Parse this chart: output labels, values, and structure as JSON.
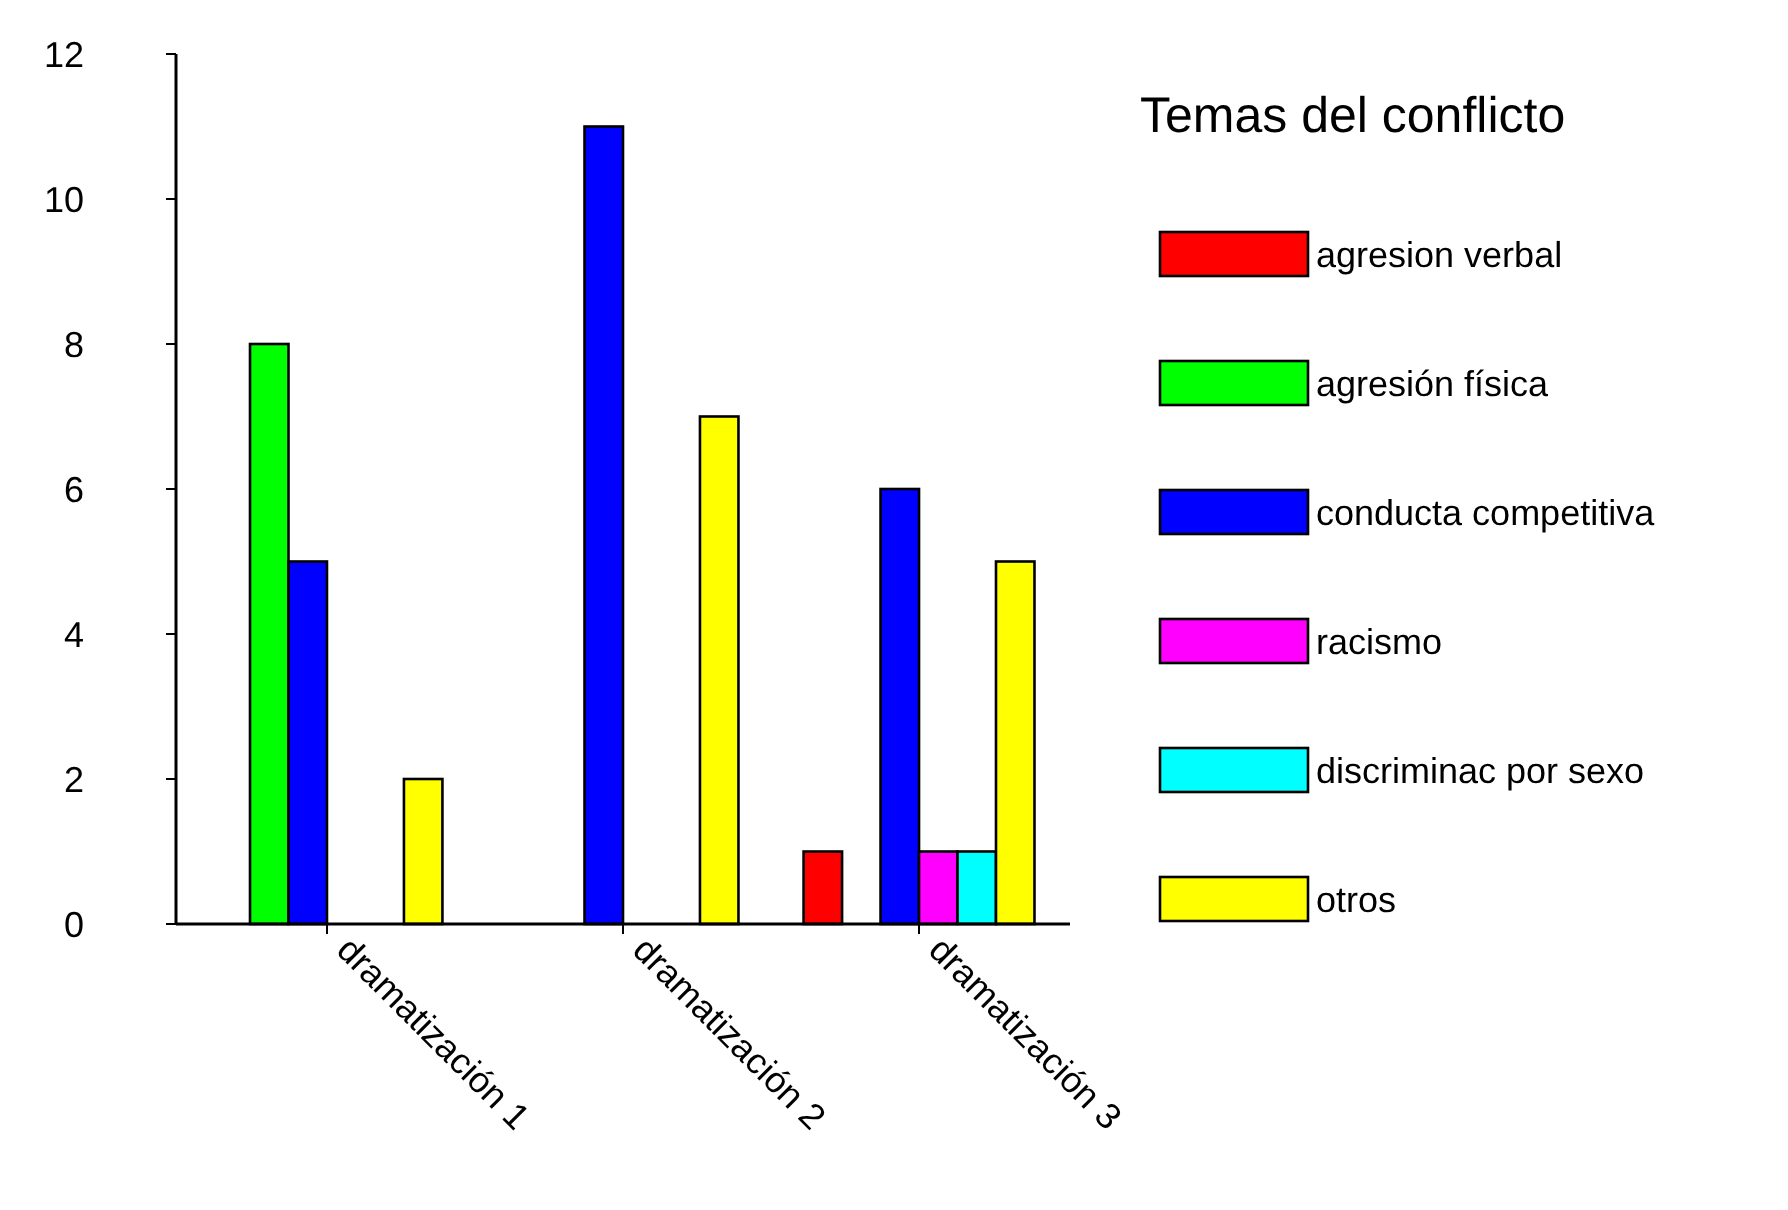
{
  "chart_data": {
    "type": "bar",
    "legend_title": "Temas del conflicto",
    "categories": [
      "dramatización 1",
      "dramatización 2",
      "dramatización 3"
    ],
    "series": [
      {
        "name": "agresion verbal",
        "color": "#ff0000",
        "values": [
          0,
          0,
          1
        ]
      },
      {
        "name": "agresión física",
        "color": "#00ff00",
        "values": [
          8,
          0,
          0
        ]
      },
      {
        "name": "conducta competitiva",
        "color": "#0000ff",
        "values": [
          5,
          11,
          6
        ]
      },
      {
        "name": "racismo",
        "color": "#ff00ff",
        "values": [
          0,
          0,
          1
        ]
      },
      {
        "name": "discriminac por sexo",
        "color": "#00ffff",
        "values": [
          0,
          0,
          1
        ]
      },
      {
        "name": "otros",
        "color": "#ffff00",
        "values": [
          2,
          7,
          5
        ]
      }
    ],
    "ylim": [
      0,
      12
    ],
    "yticks": [
      0,
      2,
      4,
      6,
      8,
      10,
      12
    ],
    "grid": false,
    "legend": "right"
  }
}
